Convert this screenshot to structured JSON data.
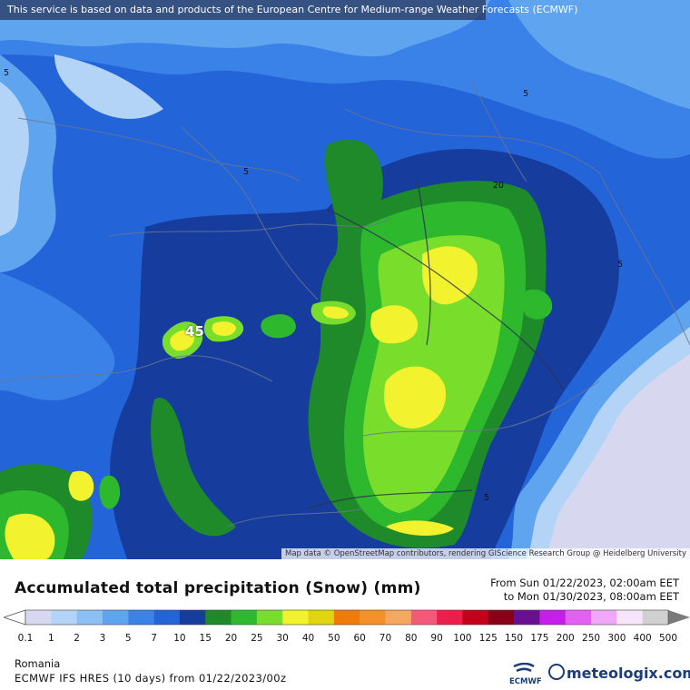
{
  "banner": "This service is based on data and products of the European Centre for Medium-range Weather Forecasts (ECMWF)",
  "attribution": "Map data © OpenStreetMap contributors, rendering GIScience Research Group @ Heidelberg University",
  "map_labels": [
    "5",
    "5",
    "5",
    "20",
    "5",
    "5"
  ],
  "max_label": "45",
  "title": "Accumulated total precipitation (Snow) (mm)",
  "period": {
    "from": "From Sun 01/22/2023, 02:00am EET",
    "to": "to Mon 01/30/2023, 08:00am EET"
  },
  "legend": {
    "values": [
      "0.1",
      "1",
      "2",
      "3",
      "5",
      "7",
      "10",
      "15",
      "20",
      "25",
      "30",
      "40",
      "50",
      "60",
      "70",
      "80",
      "90",
      "100",
      "125",
      "150",
      "175",
      "200",
      "250",
      "300",
      "400",
      "500"
    ],
    "colors": [
      "#d7d8f0",
      "#b4d4f7",
      "#8cc0f5",
      "#5fa4ee",
      "#3b82e8",
      "#2364d9",
      "#163d9e",
      "#1e8a2a",
      "#2db82d",
      "#79dd2c",
      "#f2f22e",
      "#e0d510",
      "#f07a0a",
      "#f5912a",
      "#f7a85e",
      "#f35a7a",
      "#ea1f4a",
      "#c5001b",
      "#8a0016",
      "#6a0f92",
      "#c41ee8",
      "#e35ff2",
      "#f0a7f7",
      "#f5e4fa",
      "#d0d0d0"
    ]
  },
  "region": "Romania",
  "model": "ECMWF IFS HRES (10 days) from 01/22/2023/00z",
  "ecmwf_logo": "ECMWF",
  "brand": "meteologix.com",
  "map_colors": {
    "light": "#b4d4f7",
    "mid": "#5fa4ee",
    "blue": "#3b82e8",
    "deep": "#2364d9",
    "navy": "#163d9e",
    "dkgreen": "#1e8a2a",
    "green": "#2db82d",
    "lime": "#79dd2c",
    "yellow": "#f2f22e",
    "pale": "#d7d8f0"
  }
}
